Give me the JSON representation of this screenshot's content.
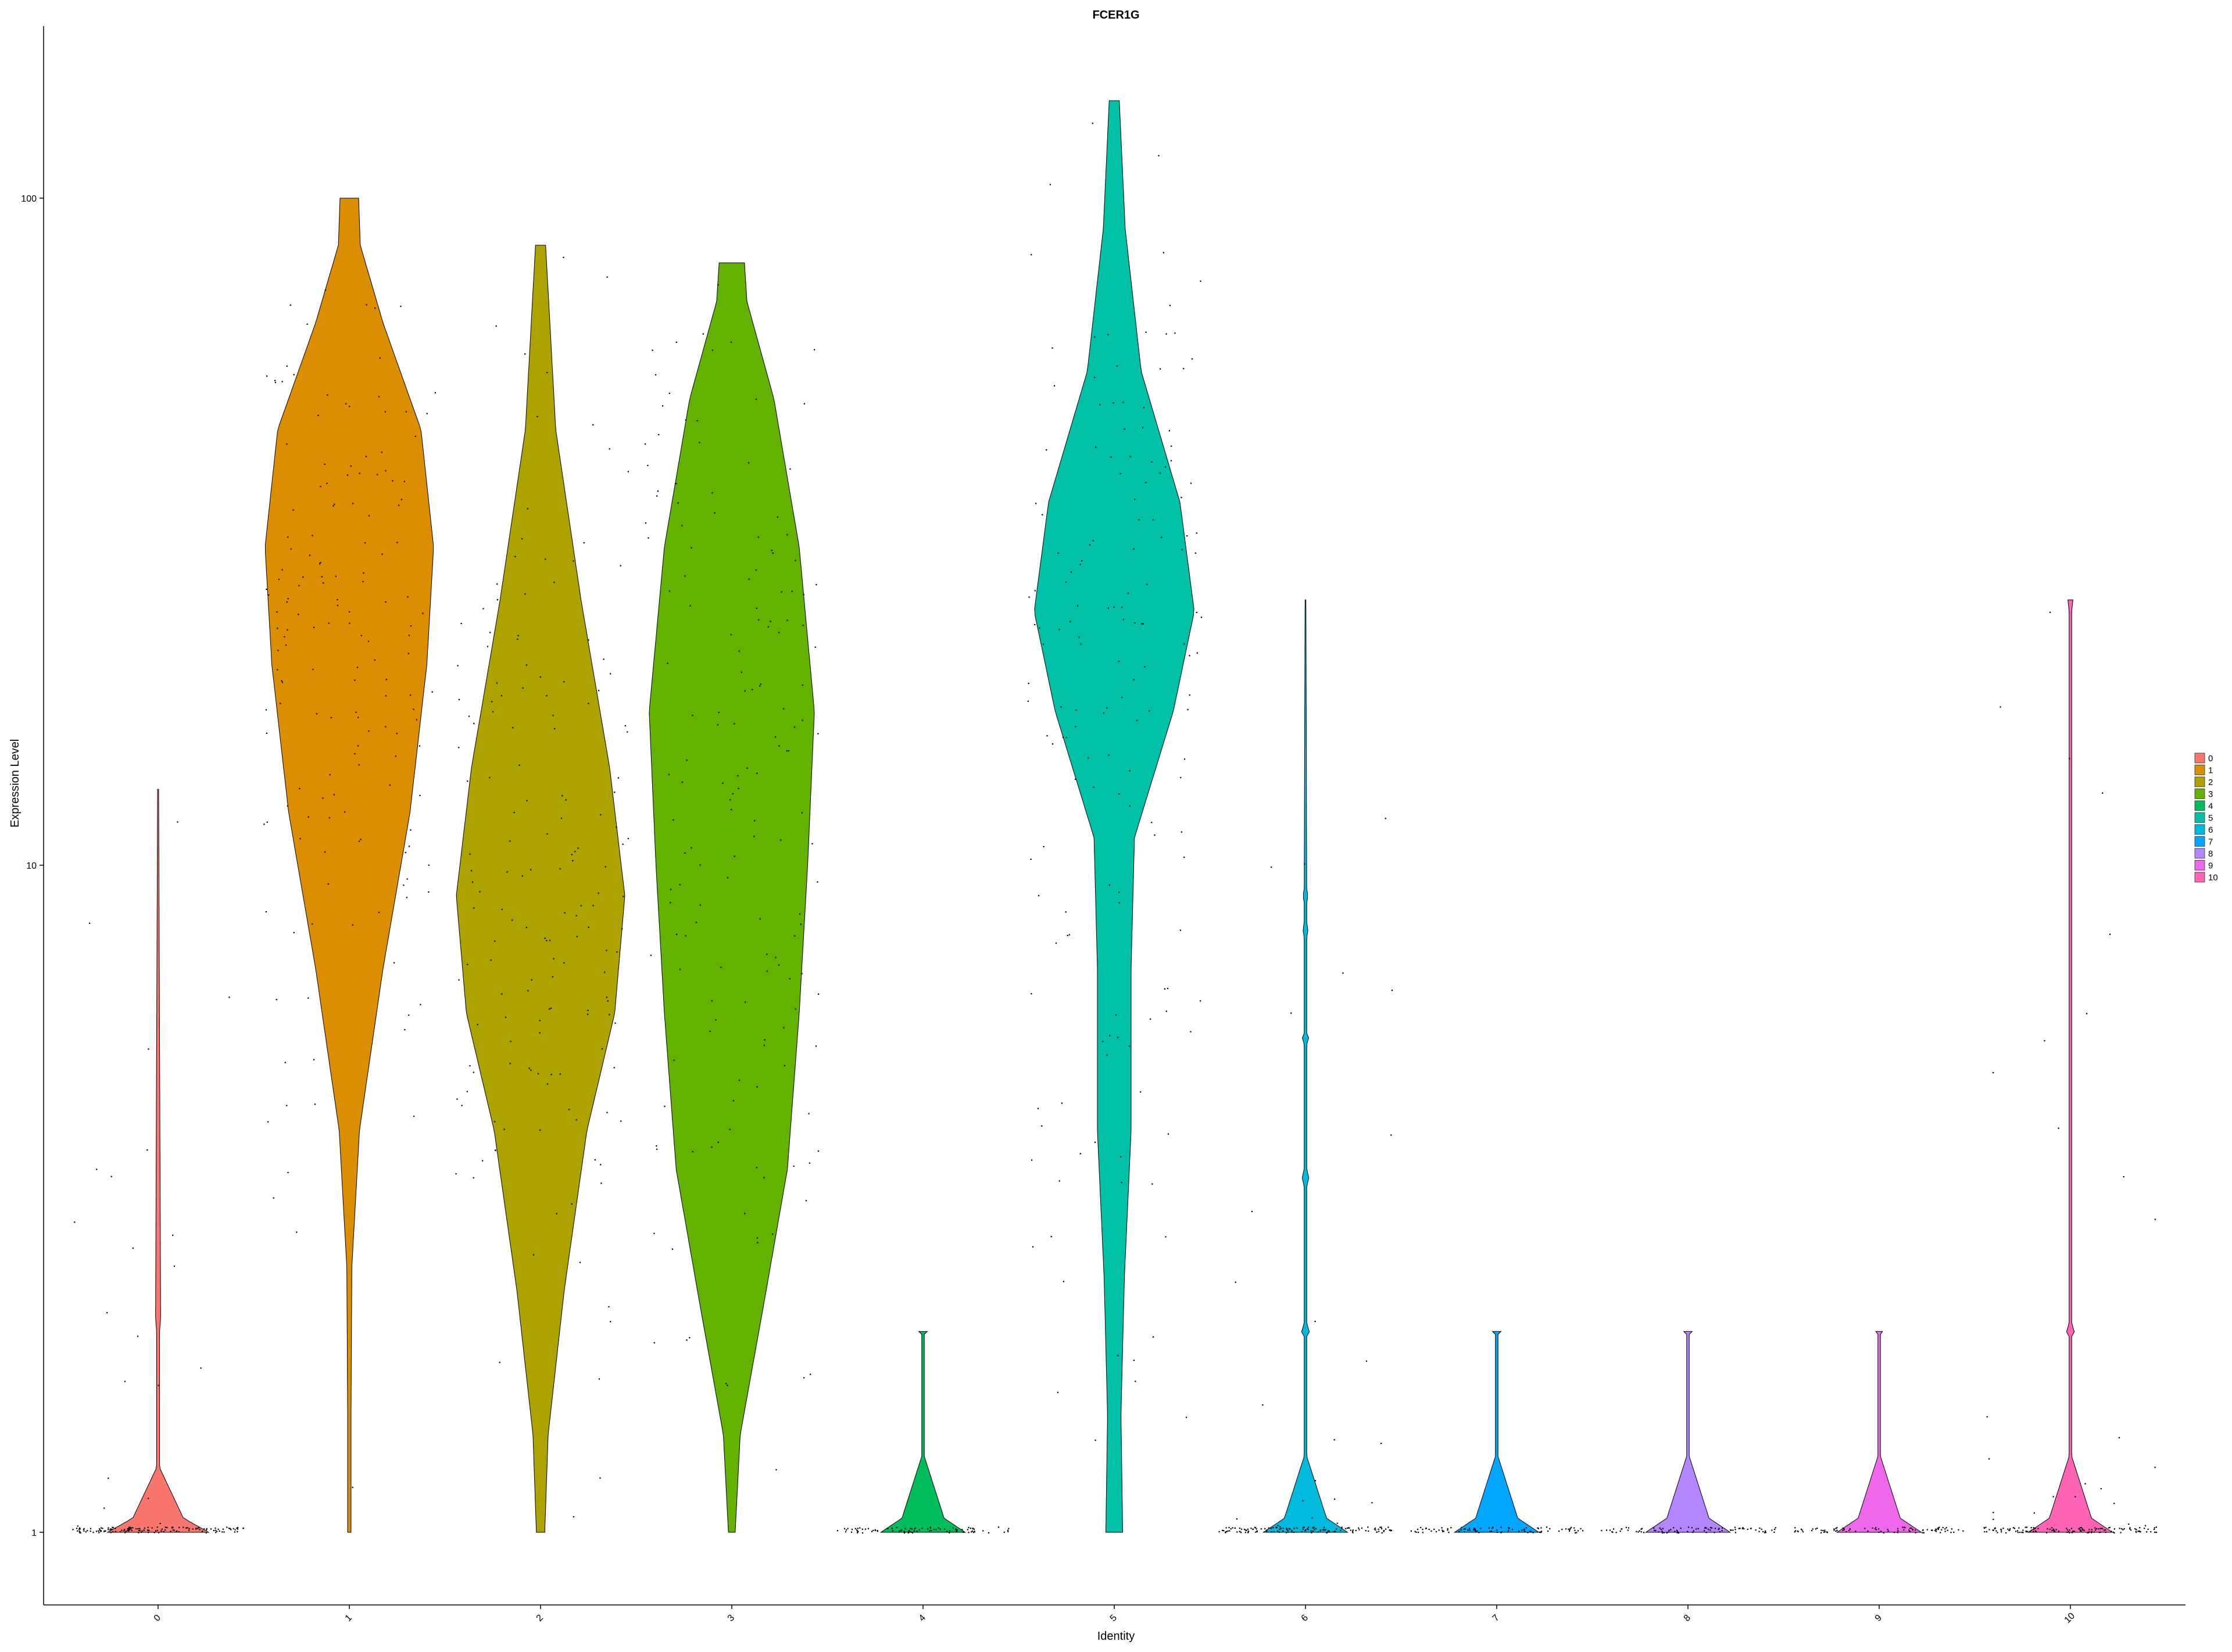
{
  "chart_data": {
    "type": "violin",
    "title": "FCER1G",
    "xlabel": "Identity",
    "ylabel": "Expression Level",
    "y_scale": "log10",
    "ylim": [
      0.8,
      160
    ],
    "y_ticks": [
      1,
      10,
      100
    ],
    "y_tick_labels": [
      "1",
      "10",
      "100"
    ],
    "grid": false,
    "legend_position": "right",
    "categories": [
      "0",
      "1",
      "2",
      "3",
      "4",
      "5",
      "6",
      "7",
      "8",
      "9",
      "10"
    ],
    "colors": [
      "#F8766D",
      "#DB8E00",
      "#AEA200",
      "#64B200",
      "#00BD5C",
      "#00C1A7",
      "#00BADE",
      "#00A6FF",
      "#B385FF",
      "#EF67EB",
      "#FF63B6"
    ],
    "series": [
      {
        "name": "0",
        "min": 1,
        "max": 13,
        "max_density": 0.6,
        "profile": [
          [
            1,
            1
          ],
          [
            1.05,
            0.5
          ],
          [
            1.25,
            0.03
          ],
          [
            2,
            0.03
          ],
          [
            2.1,
            0.05
          ],
          [
            13,
            0.01
          ]
        ]
      },
      {
        "name": "1",
        "min": 1,
        "max": 100,
        "max_density": 1,
        "profile": [
          [
            1,
            0.02
          ],
          [
            1.5,
            0.02
          ],
          [
            2.5,
            0.03
          ],
          [
            4,
            0.12
          ],
          [
            7,
            0.4
          ],
          [
            12,
            0.72
          ],
          [
            20,
            0.92
          ],
          [
            30,
            1
          ],
          [
            45,
            0.85
          ],
          [
            65,
            0.4
          ],
          [
            85,
            0.13
          ],
          [
            100,
            0.11
          ]
        ]
      },
      {
        "name": "2",
        "min": 1,
        "max": 85,
        "max_density": 1,
        "profile": [
          [
            1,
            0.05
          ],
          [
            1.4,
            0.09
          ],
          [
            2.3,
            0.28
          ],
          [
            4,
            0.55
          ],
          [
            6,
            0.88
          ],
          [
            9,
            1
          ],
          [
            14,
            0.82
          ],
          [
            25,
            0.48
          ],
          [
            45,
            0.18
          ],
          [
            85,
            0.06
          ]
        ]
      },
      {
        "name": "3",
        "min": 1,
        "max": 80,
        "max_density": 1,
        "profile": [
          [
            1,
            0.04
          ],
          [
            1.4,
            0.1
          ],
          [
            2.2,
            0.38
          ],
          [
            3.5,
            0.66
          ],
          [
            6,
            0.8
          ],
          [
            10,
            0.9
          ],
          [
            17,
            0.98
          ],
          [
            30,
            0.8
          ],
          [
            50,
            0.5
          ],
          [
            70,
            0.18
          ],
          [
            80,
            0.15
          ]
        ]
      },
      {
        "name": "4",
        "min": 1,
        "max": 2,
        "max_density": 0.5,
        "profile": [
          [
            1,
            1
          ],
          [
            1.05,
            0.5
          ],
          [
            1.3,
            0.03
          ],
          [
            1.98,
            0.03
          ],
          [
            2.0,
            0.1
          ]
        ]
      },
      {
        "name": "5",
        "min": 1,
        "max": 140,
        "max_density": 1,
        "profile": [
          [
            1,
            0.1
          ],
          [
            1.5,
            0.08
          ],
          [
            2.4,
            0.12
          ],
          [
            4,
            0.2
          ],
          [
            7,
            0.2
          ],
          [
            11,
            0.24
          ],
          [
            17,
            0.7
          ],
          [
            24,
            0.95
          ],
          [
            35,
            0.78
          ],
          [
            55,
            0.32
          ],
          [
            90,
            0.13
          ],
          [
            140,
            0.06
          ]
        ]
      },
      {
        "name": "6",
        "min": 1,
        "max": 25,
        "max_density": 0.5,
        "profile": [
          [
            1,
            1
          ],
          [
            1.05,
            0.5
          ],
          [
            1.3,
            0.03
          ],
          [
            1.98,
            0.03
          ],
          [
            2.0,
            0.1
          ],
          [
            2.05,
            0.03
          ],
          [
            3.3,
            0.03
          ],
          [
            3.4,
            0.08
          ],
          [
            3.5,
            0.03
          ],
          [
            5.4,
            0.03
          ],
          [
            5.5,
            0.08
          ],
          [
            5.6,
            0.03
          ],
          [
            7.8,
            0.03
          ],
          [
            8,
            0.06
          ],
          [
            8.2,
            0.03
          ],
          [
            8.8,
            0.03
          ],
          [
            9,
            0.06
          ],
          [
            9.2,
            0.03
          ],
          [
            25,
            0.01
          ]
        ]
      },
      {
        "name": "7",
        "min": 1,
        "max": 2,
        "max_density": 0.5,
        "profile": [
          [
            1,
            1
          ],
          [
            1.05,
            0.5
          ],
          [
            1.3,
            0.03
          ],
          [
            1.98,
            0.03
          ],
          [
            2.0,
            0.1
          ]
        ]
      },
      {
        "name": "8",
        "min": 1,
        "max": 2,
        "max_density": 0.5,
        "profile": [
          [
            1,
            1
          ],
          [
            1.05,
            0.5
          ],
          [
            1.3,
            0.03
          ],
          [
            1.98,
            0.03
          ],
          [
            2.0,
            0.1
          ]
        ]
      },
      {
        "name": "9",
        "min": 1,
        "max": 2,
        "max_density": 0.5,
        "profile": [
          [
            1,
            1
          ],
          [
            1.05,
            0.5
          ],
          [
            1.3,
            0.03
          ],
          [
            1.98,
            0.03
          ],
          [
            2.0,
            0.08
          ]
        ]
      },
      {
        "name": "10",
        "min": 1,
        "max": 25,
        "max_density": 0.5,
        "profile": [
          [
            1,
            1
          ],
          [
            1.05,
            0.5
          ],
          [
            1.3,
            0.03
          ],
          [
            1.98,
            0.03
          ],
          [
            2.0,
            0.1
          ],
          [
            2.05,
            0.03
          ],
          [
            24,
            0.03
          ],
          [
            25,
            0.06
          ]
        ]
      }
    ],
    "points_style": "jittered black dots"
  }
}
